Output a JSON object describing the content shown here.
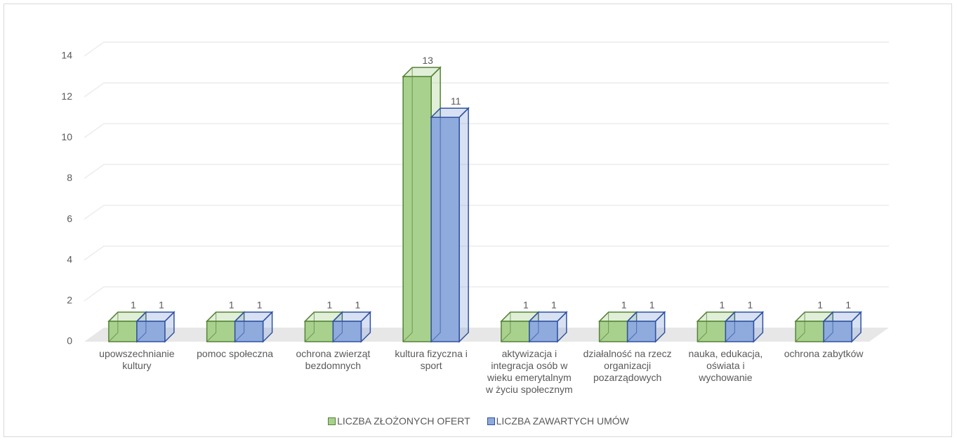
{
  "chart_data": {
    "type": "bar3d",
    "categories": [
      "upowszechnianie kultury",
      "pomoc społeczna",
      "ochrona zwierząt bezdomnych",
      "kultura fizyczna i sport",
      "aktywizacja i integracja osób w wieku emerytalnym w życiu społecznym",
      "działalność na rzecz organizacji pozarządowych",
      "nauka, edukacja, oświata i wychowanie",
      "ochrona zabytków"
    ],
    "series": [
      {
        "name": "LICZBA ZŁOŻONYCH OFERT",
        "color": "#a9d18e",
        "values": [
          1,
          1,
          1,
          13,
          1,
          1,
          1,
          1
        ]
      },
      {
        "name": "LICZBA ZAWARTYCH UMÓW",
        "color": "#8faadc",
        "values": [
          1,
          1,
          1,
          11,
          1,
          1,
          1,
          1
        ]
      }
    ],
    "ylim": [
      0,
      14
    ],
    "yticks": [
      0,
      2,
      4,
      6,
      8,
      10,
      12,
      14
    ],
    "grid": true,
    "legend": "bottom"
  }
}
